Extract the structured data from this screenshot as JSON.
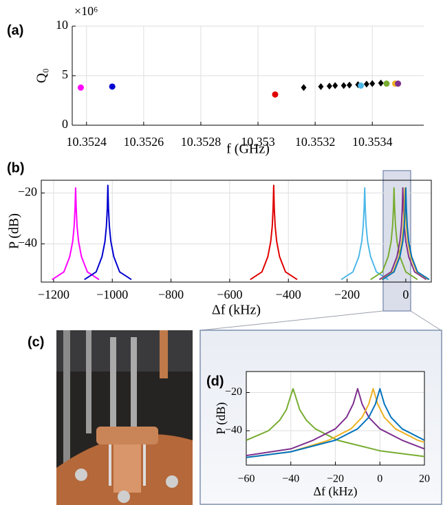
{
  "chart_data": [
    {
      "type": "scatter",
      "label": "(a)",
      "y_multiplier": "×10⁶",
      "xlabel": "f (GHz)",
      "ylabel": "Q₀",
      "xlim": [
        10.35235,
        10.35358
      ],
      "ylim": [
        0,
        10
      ],
      "xticks": [
        10.3524,
        10.3526,
        10.3528,
        10.353,
        10.3532,
        10.3534
      ],
      "yticks": [
        0,
        5,
        10
      ],
      "grid": true,
      "series": [
        {
          "color": "#ff00ff",
          "marker": "circle",
          "x": [
            10.35238
          ],
          "values": [
            3.8
          ]
        },
        {
          "color": "#0000d0",
          "marker": "circle",
          "x": [
            10.35249
          ],
          "values": [
            3.9
          ]
        },
        {
          "color": "#e00000",
          "marker": "circle",
          "x": [
            10.35306
          ],
          "values": [
            3.1
          ]
        },
        {
          "color": "#000000",
          "marker": "diamond",
          "x": [
            10.35316,
            10.35322,
            10.35325,
            10.35327,
            10.3533,
            10.35332,
            10.35335,
            10.35338,
            10.3534,
            10.35343
          ],
          "values": [
            3.8,
            3.9,
            3.95,
            4.0,
            4.0,
            4.05,
            4.1,
            4.15,
            4.2,
            4.25
          ]
        },
        {
          "color": "#4db8e8",
          "marker": "circle",
          "x": [
            10.35336
          ],
          "values": [
            4.0
          ]
        },
        {
          "color": "#77ac30",
          "marker": "circle",
          "x": [
            10.35345
          ],
          "values": [
            4.2
          ]
        },
        {
          "color": "#edb120",
          "marker": "circle",
          "x": [
            10.35348
          ],
          "values": [
            4.2
          ]
        },
        {
          "color": "#7e2f8e",
          "marker": "circle",
          "x": [
            10.35349
          ],
          "values": [
            4.2
          ]
        }
      ]
    },
    {
      "type": "line",
      "label": "(b)",
      "xlabel": "Δf (kHz)",
      "ylabel": "P (dB)",
      "xlim": [
        -1242,
        87
      ],
      "ylim": [
        -55,
        -15
      ],
      "xticks": [
        {
          "value": -1200,
          "label": "−1200"
        },
        {
          "value": -1000,
          "label": "−1000"
        },
        {
          "value": -800,
          "label": "−800"
        },
        {
          "value": -600,
          "label": "−600"
        },
        {
          "value": -400,
          "label": "−400"
        },
        {
          "value": -200,
          "label": "−200"
        },
        0
      ],
      "yticks": [
        {
          "value": -40,
          "label": "−40"
        },
        {
          "value": -20,
          "label": "−20"
        }
      ],
      "grid": true,
      "series": [
        {
          "color": "#ff00ff",
          "x": [
            -1205,
            -1165,
            -1145,
            -1135,
            -1130,
            -1127,
            -1125,
            -1123,
            -1120,
            -1115,
            -1105,
            -1085,
            -1045
          ],
          "values": [
            -54,
            -51,
            -45,
            -39,
            -33,
            -26,
            -18,
            -26,
            -33,
            -39,
            -45,
            -51,
            -54
          ]
        },
        {
          "color": "#0000d0",
          "x": [
            -1095,
            -1055,
            -1035,
            -1025,
            -1020,
            -1017,
            -1015,
            -1013,
            -1010,
            -1005,
            -995,
            -975,
            -935
          ],
          "values": [
            -54,
            -51,
            -45,
            -39,
            -33,
            -26,
            -17,
            -26,
            -33,
            -39,
            -45,
            -51,
            -54
          ]
        },
        {
          "color": "#e00000",
          "x": [
            -530,
            -490,
            -470,
            -460,
            -455,
            -452,
            -450,
            -448,
            -445,
            -440,
            -430,
            -410,
            -370
          ],
          "values": [
            -54,
            -51,
            -45,
            -39,
            -33,
            -26,
            -17,
            -26,
            -33,
            -39,
            -45,
            -51,
            -54
          ]
        },
        {
          "color": "#4db8e8",
          "x": [
            -220,
            -180,
            -160,
            -150,
            -145,
            -142,
            -140,
            -138,
            -135,
            -130,
            -120,
            -100,
            -60
          ],
          "values": [
            -54,
            -51,
            -45,
            -39,
            -33,
            -26,
            -18,
            -26,
            -33,
            -39,
            -45,
            -51,
            -54
          ]
        },
        {
          "color": "#77ac30",
          "x": [
            -120,
            -80,
            -60,
            -50,
            -45,
            -42,
            -40,
            -38,
            -35,
            -30,
            -20,
            0,
            40
          ],
          "values": [
            -54,
            -51,
            -45,
            -39,
            -33,
            -26,
            -18,
            -26,
            -33,
            -39,
            -45,
            -51,
            -54
          ]
        },
        {
          "color": "#7e2f8e",
          "x": [
            -90,
            -50,
            -30,
            -20,
            -15,
            -12,
            -10,
            -8,
            -5,
            0,
            10,
            30,
            70
          ],
          "values": [
            -54,
            -51,
            -45,
            -39,
            -33,
            -26,
            -18,
            -26,
            -33,
            -39,
            -45,
            -51,
            -54
          ]
        },
        {
          "color": "#edb120",
          "x": [
            -83,
            -43,
            -23,
            -13,
            -8,
            -5,
            -3,
            -1,
            2,
            7,
            17,
            37,
            77
          ],
          "values": [
            -54,
            -51,
            -45,
            -39,
            -33,
            -26,
            -18,
            -26,
            -33,
            -39,
            -45,
            -51,
            -54
          ]
        },
        {
          "color": "#0072bd",
          "x": [
            -80,
            -40,
            -20,
            -10,
            -5,
            -2,
            0,
            2,
            5,
            10,
            20,
            40,
            80
          ],
          "values": [
            -54,
            -51,
            -45,
            -39,
            -33,
            -26,
            -18,
            -26,
            -33,
            -39,
            -45,
            -51,
            -54
          ]
        }
      ]
    },
    {
      "type": "line",
      "label": "(d)",
      "xlabel": "Δf (kHz)",
      "ylabel": "P (dB)",
      "xlim": [
        -60,
        20
      ],
      "ylim": [
        -58,
        -9
      ],
      "xticks": [
        {
          "value": -60,
          "label": "−60"
        },
        {
          "value": -40,
          "label": "−40"
        },
        {
          "value": -20,
          "label": "−20"
        },
        0,
        20
      ],
      "yticks": [
        {
          "value": -40,
          "label": "−40"
        },
        {
          "value": -20,
          "label": "−20"
        }
      ],
      "grid": true,
      "series": [
        {
          "color": "#77ac30",
          "x": [
            -60,
            -50,
            -45,
            -42,
            -40,
            -39,
            -38,
            -36,
            -33,
            -29,
            -19,
            0,
            20
          ],
          "values": [
            -45,
            -40,
            -34.5,
            -29,
            -21.5,
            -18,
            -21.5,
            -29,
            -34.5,
            -39,
            -45,
            -50.5,
            -53.5
          ]
        },
        {
          "color": "#7e2f8e",
          "x": [
            -60,
            -40,
            -30,
            -20,
            -15,
            -12,
            -10,
            -8,
            -5,
            0,
            10,
            20
          ],
          "values": [
            -53,
            -49.5,
            -45,
            -39,
            -33,
            -26,
            -18,
            -26,
            -33,
            -39,
            -45,
            -49.5
          ]
        },
        {
          "color": "#edb120",
          "x": [
            -60,
            -40,
            -23,
            -13,
            -8,
            -5,
            -3,
            -1,
            2,
            7,
            17,
            20
          ],
          "values": [
            -54,
            -51,
            -45,
            -39,
            -33,
            -26,
            -18,
            -26,
            -33,
            -39,
            -45,
            -46
          ]
        },
        {
          "color": "#0072bd",
          "x": [
            -60,
            -40,
            -20,
            -10,
            -5,
            -2,
            0,
            2,
            5,
            10,
            20
          ],
          "values": [
            -54,
            -51,
            -45,
            -39,
            -33,
            -26,
            -18,
            -26,
            -33,
            -39,
            -45
          ]
        }
      ]
    }
  ],
  "photo": {
    "label": "(c)"
  }
}
